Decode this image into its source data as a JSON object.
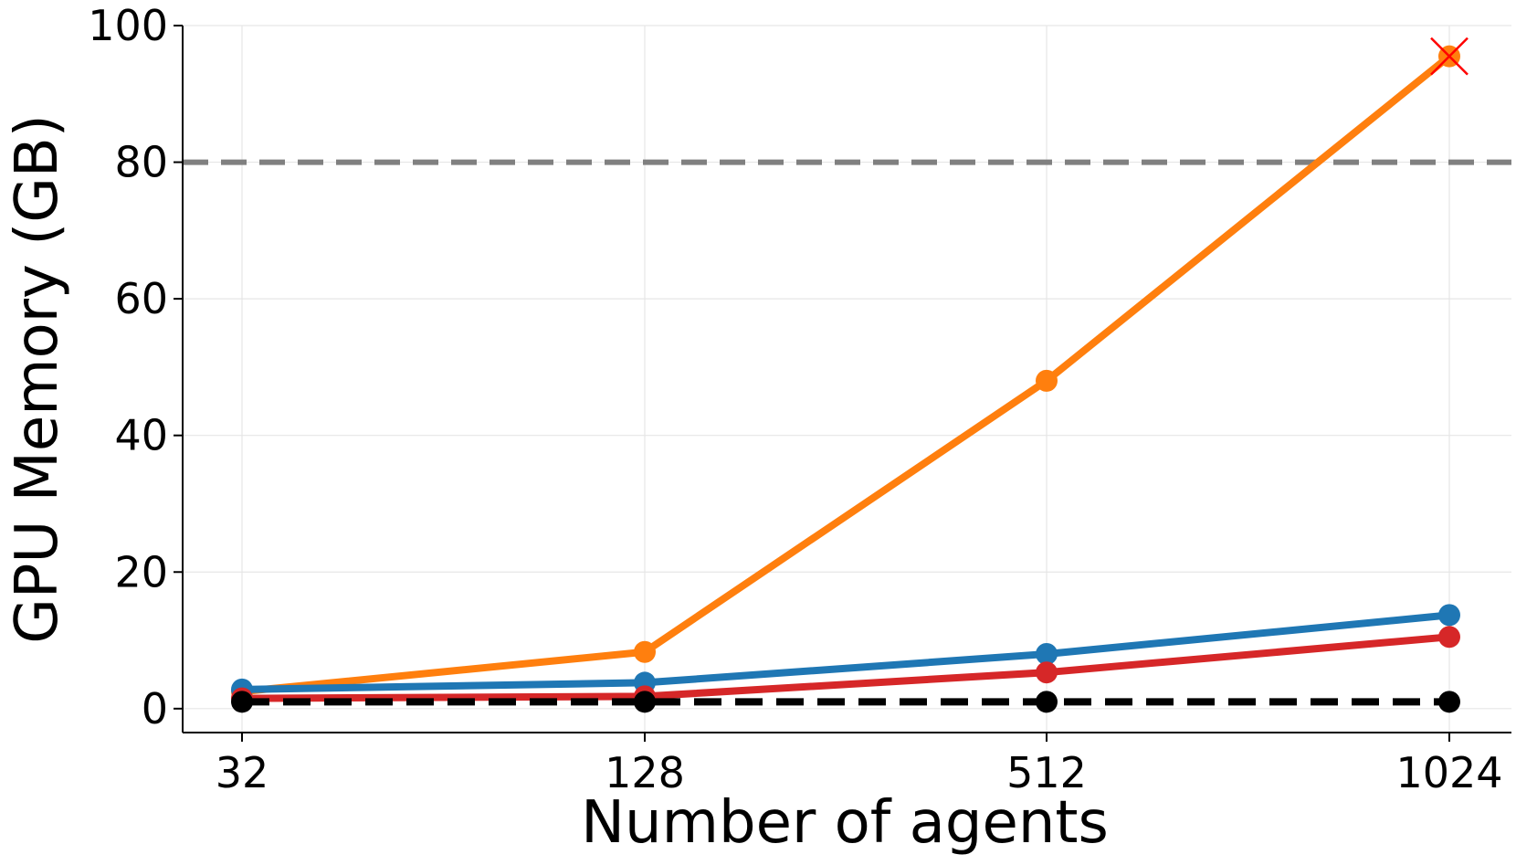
{
  "chart_data": {
    "type": "line",
    "xlabel": "Number of agents",
    "ylabel": "GPU Memory (GB)",
    "x_categories": [
      "32",
      "128",
      "512",
      "1024"
    ],
    "ylim": [
      -3.5,
      100
    ],
    "yticks": [
      0,
      20,
      40,
      60,
      80,
      100
    ],
    "ytick_labels": [
      "0",
      "20",
      "40",
      "60",
      "80",
      "100"
    ],
    "grid": true,
    "legend": null,
    "reference_lines": [
      {
        "y": 80,
        "color": "#808080",
        "style": "dashed"
      }
    ],
    "series": [
      {
        "color": "#ff7f0e",
        "values": [
          2.5,
          8.3,
          48.0,
          95.5
        ],
        "style": "solid",
        "failed_points": [
          3
        ]
      },
      {
        "color": "#1f77b4",
        "values": [
          2.8,
          3.8,
          8.0,
          13.7
        ],
        "style": "solid"
      },
      {
        "color": "#d62728",
        "values": [
          1.5,
          1.8,
          5.3,
          10.5
        ],
        "style": "solid"
      },
      {
        "color": "#000000",
        "values": [
          1.0,
          1.0,
          1.0,
          1.0
        ],
        "style": "dashed"
      }
    ],
    "failure_marker_color": "#ff0000"
  }
}
